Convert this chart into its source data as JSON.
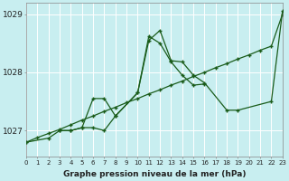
{
  "hours": [
    0,
    1,
    2,
    3,
    4,
    5,
    6,
    7,
    8,
    9,
    10,
    11,
    12,
    13,
    14,
    15,
    16,
    17,
    18,
    19,
    20,
    21,
    22,
    23
  ],
  "line_straight": [
    1026.8,
    1026.88,
    1026.95,
    1027.02,
    1027.1,
    1027.18,
    1027.25,
    1027.33,
    1027.4,
    1027.48,
    1027.55,
    1027.63,
    1027.7,
    1027.78,
    1027.85,
    1027.93,
    1028.0,
    1028.08,
    1028.15,
    1028.23,
    1028.3,
    1028.38,
    1028.45,
    1029.0
  ],
  "line_jagged1": [
    1026.8,
    null,
    1026.87,
    1027.0,
    1027.0,
    1027.05,
    1027.05,
    1027.0,
    1027.25,
    null,
    1027.65,
    1028.55,
    1028.72,
    1028.2,
    1028.18,
    1027.95,
    1027.82,
    null,
    1027.35,
    1027.35,
    null,
    null,
    1027.5,
    1029.05
  ],
  "line_jagged2": [
    null,
    null,
    null,
    1027.0,
    1027.0,
    1027.05,
    1027.55,
    1027.55,
    1027.25,
    null,
    1027.65,
    1028.62,
    1028.5,
    1028.18,
    1027.95,
    1027.78,
    1027.8,
    null,
    null,
    null,
    null,
    null,
    null,
    null
  ],
  "bg_color": "#c8eef0",
  "line_color": "#1a5c1a",
  "grid_color": "#ffffff",
  "yticks": [
    1027,
    1028,
    1029
  ],
  "ylim": [
    1026.55,
    1029.2
  ],
  "xlim": [
    0,
    23
  ],
  "xlabel": "Graphe pression niveau de la mer (hPa)"
}
